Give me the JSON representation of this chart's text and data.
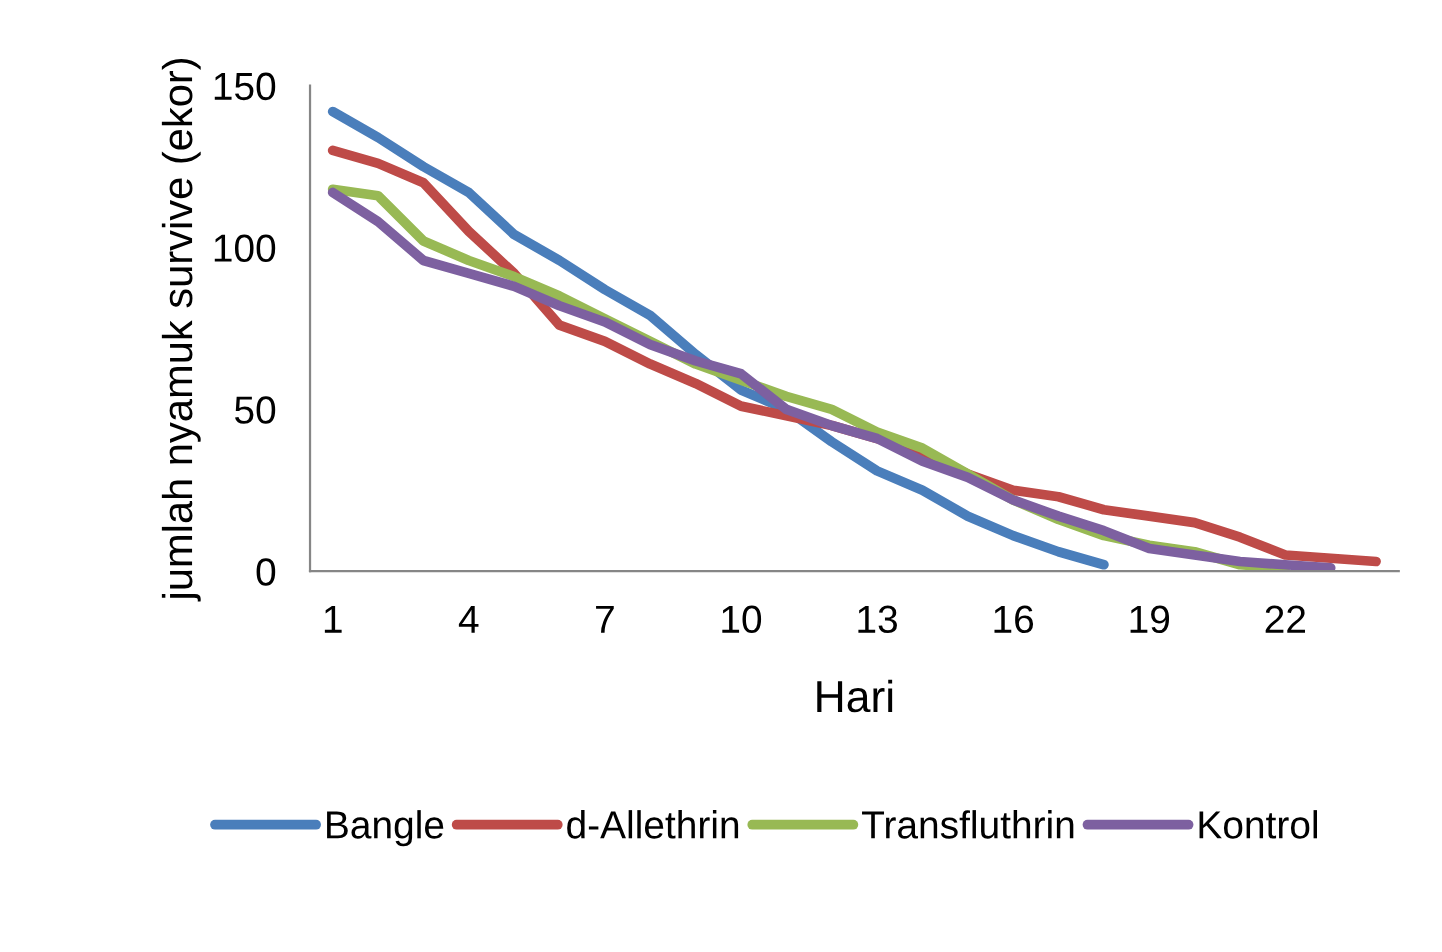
{
  "chart_data": {
    "type": "line",
    "xlabel": "Hari",
    "ylabel": "jumlah nyamuk survive (ekor)",
    "categories": [
      "1",
      null,
      null,
      "4",
      null,
      null,
      "7",
      null,
      null,
      "10",
      null,
      null,
      "13",
      null,
      null,
      "16",
      null,
      null,
      "19",
      null,
      null,
      "22",
      null,
      null
    ],
    "series": [
      {
        "name": "Bangle",
        "color": "#4a7ebb",
        "values": [
          142,
          134,
          125,
          117,
          104,
          96,
          87,
          79,
          67,
          56,
          50,
          40,
          31,
          25,
          17,
          11,
          6,
          2,
          null,
          null,
          null,
          null,
          null,
          null
        ]
      },
      {
        "name": "d-Allethrin",
        "color": "#be4b48",
        "values": [
          130,
          126,
          120,
          105,
          92,
          76,
          71,
          64,
          58,
          51,
          48,
          45,
          41,
          37,
          30,
          25,
          23,
          19,
          17,
          15,
          10.5,
          5,
          4,
          3
        ]
      },
      {
        "name": "Transfluthrin",
        "color": "#98b954",
        "values": [
          118,
          116,
          102,
          96,
          91,
          85,
          78,
          71,
          64,
          59,
          54,
          50,
          43,
          38,
          30,
          22,
          16,
          11,
          8,
          6,
          2,
          1,
          null,
          null
        ]
      },
      {
        "name": "Kontrol",
        "color": "#7d60a0",
        "values": [
          117,
          108,
          96,
          92,
          88,
          82,
          77,
          70,
          65,
          61,
          50,
          45,
          41,
          34,
          29,
          22,
          17,
          12.5,
          7,
          5,
          3,
          2,
          1,
          null
        ]
      }
    ],
    "ylim": [
      0,
      150
    ],
    "yticks": [
      0,
      50,
      100,
      150
    ],
    "grid": false,
    "legend": "bottom",
    "marker": "none",
    "line_style": "solid"
  }
}
